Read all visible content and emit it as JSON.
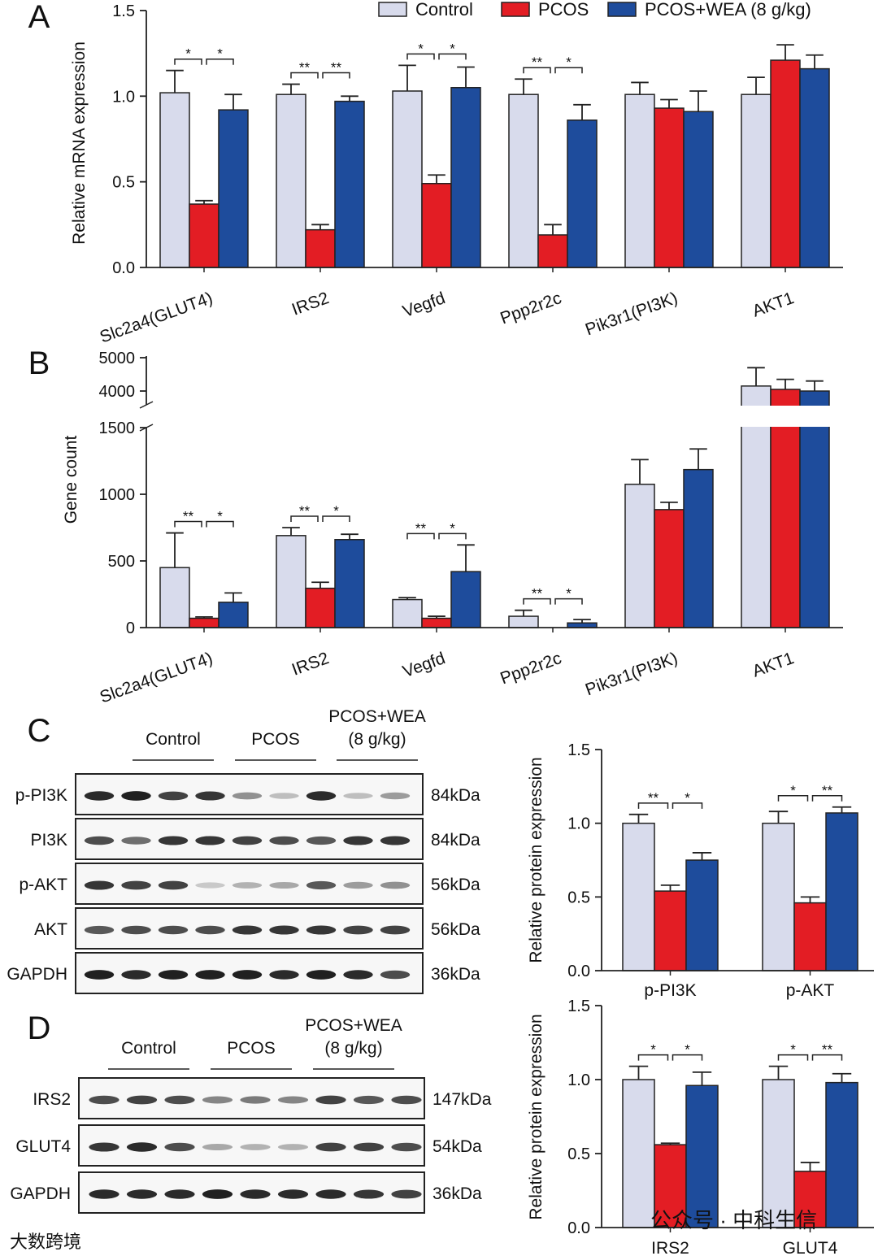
{
  "colors": {
    "Control": "#d8dbec",
    "PCOS": "#e31d24",
    "PCOS+WEA (8 g/kg)": "#1e4c9c",
    "axis": "#222222"
  },
  "legend": [
    "Control",
    "PCOS",
    "PCOS+WEA (8 g/kg)"
  ],
  "panel_labels": {
    "A": "A",
    "B": "B",
    "C": "C",
    "D": "D"
  },
  "chart_data": [
    {
      "id": "A",
      "type": "bar",
      "ylabel": "Relative mRNA expression",
      "ylim": [
        0,
        1.5
      ],
      "yticks": [
        "0.0",
        "0.5",
        "1.0",
        "1.5"
      ],
      "ytick_values": [
        0,
        0.5,
        1,
        1.5
      ],
      "categories": [
        "Slc2a4(GLUT4)",
        "IRS2",
        "Vegfd",
        "Ppp2r2c",
        "Pik3r1(PI3K)",
        "AKT1"
      ],
      "series": [
        {
          "name": "Control",
          "values": [
            1.02,
            1.01,
            1.03,
            1.01,
            1.01,
            1.01
          ],
          "errors": [
            0.13,
            0.06,
            0.15,
            0.09,
            0.07,
            0.1
          ]
        },
        {
          "name": "PCOS",
          "values": [
            0.37,
            0.22,
            0.49,
            0.19,
            0.93,
            1.21
          ],
          "errors": [
            0.02,
            0.03,
            0.05,
            0.06,
            0.05,
            0.09
          ]
        },
        {
          "name": "PCOS+WEA (8 g/kg)",
          "values": [
            0.92,
            0.97,
            1.05,
            0.86,
            0.91,
            1.16
          ],
          "errors": [
            0.09,
            0.03,
            0.12,
            0.09,
            0.12,
            0.08
          ]
        }
      ],
      "significance": [
        [
          "*",
          "*"
        ],
        [
          "**",
          "**"
        ],
        [
          "*",
          "*"
        ],
        [
          "**",
          "*"
        ],
        null,
        null
      ]
    },
    {
      "id": "B",
      "type": "bar",
      "ylabel": "Gene count",
      "axis_break": [
        1500,
        3600
      ],
      "yticks": [
        "0",
        "500",
        "1000",
        "1500",
        "4000",
        "5000"
      ],
      "ytick_values": [
        0,
        500,
        1000,
        1500,
        4000,
        5000
      ],
      "categories": [
        "Slc2a4(GLUT4)",
        "IRS2",
        "Vegfd",
        "Ppp2r2c",
        "Pik3r1(PI3K)",
        "AKT1"
      ],
      "series": [
        {
          "name": "Control",
          "values": [
            450,
            690,
            210,
            85,
            1075,
            4150
          ],
          "errors": [
            260,
            60,
            15,
            45,
            185,
            550
          ]
        },
        {
          "name": "PCOS",
          "values": [
            70,
            295,
            70,
            0,
            885,
            4050
          ],
          "errors": [
            10,
            45,
            15,
            0,
            55,
            300
          ]
        },
        {
          "name": "PCOS+WEA (8 g/kg)",
          "values": [
            190,
            660,
            420,
            35,
            1185,
            4000
          ],
          "errors": [
            70,
            40,
            200,
            25,
            155,
            300
          ]
        }
      ],
      "significance": [
        [
          "**",
          "*"
        ],
        [
          "**",
          "*"
        ],
        [
          "**",
          "*"
        ],
        [
          "**",
          "*"
        ],
        null,
        null
      ]
    },
    {
      "id": "C",
      "type": "bar",
      "ylabel": "Relative protein expression",
      "ylim": [
        0,
        1.5
      ],
      "yticks": [
        "0.0",
        "0.5",
        "1.0",
        "1.5"
      ],
      "ytick_values": [
        0,
        0.5,
        1,
        1.5
      ],
      "categories": [
        "p-PI3K",
        "p-AKT"
      ],
      "series": [
        {
          "name": "Control",
          "values": [
            1.0,
            1.0
          ],
          "errors": [
            0.06,
            0.08
          ]
        },
        {
          "name": "PCOS",
          "values": [
            0.54,
            0.46
          ],
          "errors": [
            0.04,
            0.04
          ]
        },
        {
          "name": "PCOS+WEA (8 g/kg)",
          "values": [
            0.75,
            1.07
          ],
          "errors": [
            0.05,
            0.04
          ]
        }
      ],
      "significance": [
        [
          "**",
          "*"
        ],
        [
          "*",
          "**"
        ]
      ]
    },
    {
      "id": "D",
      "type": "bar",
      "ylabel": "Relative protein expression",
      "ylim": [
        0,
        1.5
      ],
      "yticks": [
        "0.0",
        "0.5",
        "1.0",
        "1.5"
      ],
      "ytick_values": [
        0,
        0.5,
        1,
        1.5
      ],
      "categories": [
        "IRS2",
        "GLUT4"
      ],
      "series": [
        {
          "name": "Control",
          "values": [
            1.0,
            1.0
          ],
          "errors": [
            0.09,
            0.09
          ]
        },
        {
          "name": "PCOS",
          "values": [
            0.56,
            0.38
          ],
          "errors": [
            0.01,
            0.06
          ]
        },
        {
          "name": "PCOS+WEA (8 g/kg)",
          "values": [
            0.96,
            0.98
          ],
          "errors": [
            0.09,
            0.06
          ]
        }
      ],
      "significance": [
        [
          "*",
          "*"
        ],
        [
          "*",
          "**"
        ]
      ]
    }
  ],
  "blots": {
    "C": {
      "groups": [
        "Control",
        "PCOS",
        "PCOS+WEA",
        "(8 g/kg)"
      ],
      "rows": [
        {
          "label": "p-PI3K",
          "kda": "84kDa",
          "bands": [
            0.9,
            0.95,
            0.8,
            0.85,
            0.45,
            0.25,
            0.9,
            0.25,
            0.4
          ]
        },
        {
          "label": "PI3K",
          "kda": "84kDa",
          "bands": [
            0.75,
            0.6,
            0.85,
            0.85,
            0.8,
            0.75,
            0.7,
            0.85,
            0.85
          ]
        },
        {
          "label": "p-AKT",
          "kda": "56kDa",
          "bands": [
            0.85,
            0.8,
            0.8,
            0.2,
            0.3,
            0.35,
            0.7,
            0.4,
            0.45
          ]
        },
        {
          "label": "AKT",
          "kda": "56kDa",
          "bands": [
            0.7,
            0.75,
            0.75,
            0.75,
            0.85,
            0.85,
            0.85,
            0.8,
            0.8
          ]
        },
        {
          "label": "GAPDH",
          "kda": "36kDa",
          "bands": [
            0.95,
            0.9,
            0.95,
            0.95,
            0.95,
            0.9,
            0.95,
            0.9,
            0.75
          ]
        }
      ]
    },
    "D": {
      "groups": [
        "Control",
        "PCOS",
        "PCOS+WEA",
        "(8 g/kg)"
      ],
      "rows": [
        {
          "label": "IRS2",
          "kda": "147kDa",
          "bands": [
            0.75,
            0.8,
            0.75,
            0.5,
            0.55,
            0.5,
            0.8,
            0.7,
            0.75
          ]
        },
        {
          "label": "GLUT4",
          "kda": "54kDa",
          "bands": [
            0.85,
            0.9,
            0.75,
            0.35,
            0.3,
            0.3,
            0.8,
            0.8,
            0.75
          ]
        },
        {
          "label": "GAPDH",
          "kda": "36kDa",
          "bands": [
            0.9,
            0.9,
            0.9,
            0.95,
            0.9,
            0.9,
            0.9,
            0.85,
            0.8
          ]
        }
      ]
    }
  },
  "watermarks": {
    "left": "大数跨境",
    "right": "公众号 · 中科生信"
  }
}
